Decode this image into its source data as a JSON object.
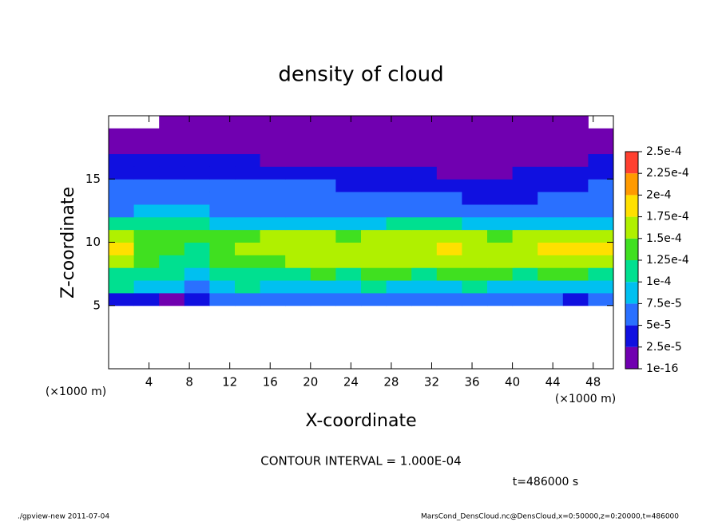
{
  "chart_data": {
    "type": "heatmap",
    "title": "density of cloud",
    "x_label": "X-coordinate",
    "y_label": "Z-coordinate",
    "x_unit": "(×1000 m)",
    "y_unit": "(×1000 m)",
    "xlim": [
      0,
      50
    ],
    "ylim": [
      0,
      20
    ],
    "xticks": [
      4,
      8,
      12,
      16,
      20,
      24,
      28,
      32,
      36,
      40,
      44,
      48
    ],
    "yticks": [
      5,
      10,
      15
    ],
    "x": [
      1.25,
      3.75,
      6.25,
      8.75,
      11.25,
      13.75,
      16.25,
      18.75,
      21.25,
      23.75,
      26.25,
      28.75,
      31.25,
      33.75,
      36.25,
      38.75,
      41.25,
      43.75,
      46.25,
      48.75
    ],
    "y": [
      5.5,
      6.5,
      7.5,
      8.5,
      9.5,
      10.5,
      11.5,
      12.5,
      13.5,
      14.5,
      15.5,
      16.5,
      17.5,
      18.5,
      19.5
    ],
    "z": [
      [
        3e-05,
        3e-05,
        2e-05,
        4e-05,
        5e-05,
        5e-05,
        6e-05,
        5e-05,
        5e-05,
        5e-05,
        5e-05,
        6e-05,
        5e-05,
        5e-05,
        5e-05,
        5e-05,
        5e-05,
        5e-05,
        4e-05,
        5e-05
      ],
      [
        0.0001,
        9e-05,
        8e-05,
        6e-05,
        9e-05,
        0.0001,
        9e-05,
        9e-05,
        9e-05,
        9e-05,
        0.0001,
        9e-05,
        9e-05,
        9e-05,
        0.0001,
        9e-05,
        9e-05,
        9e-05,
        9e-05,
        9e-05
      ],
      [
        0.00012,
        0.00011,
        0.0001,
        9e-05,
        0.00011,
        0.00012,
        0.00012,
        0.00012,
        0.00013,
        0.00012,
        0.00013,
        0.00013,
        0.00012,
        0.00013,
        0.00013,
        0.00013,
        0.00012,
        0.00013,
        0.00013,
        0.00012
      ],
      [
        0.00015,
        0.00013,
        0.00012,
        0.00011,
        0.00013,
        0.00014,
        0.00014,
        0.00015,
        0.00015,
        0.00015,
        0.00015,
        0.00015,
        0.00015,
        0.00016,
        0.00015,
        0.00015,
        0.00015,
        0.00016,
        0.00016,
        0.00016
      ],
      [
        0.00018,
        0.00014,
        0.00013,
        0.00012,
        0.00014,
        0.00015,
        0.00016,
        0.00016,
        0.00017,
        0.00016,
        0.00016,
        0.00016,
        0.00017,
        0.00018,
        0.00017,
        0.00016,
        0.00017,
        0.00018,
        0.00019,
        0.00019
      ],
      [
        0.00015,
        0.00014,
        0.00013,
        0.00013,
        0.00014,
        0.00014,
        0.00015,
        0.00015,
        0.00015,
        0.00014,
        0.00015,
        0.00015,
        0.00016,
        0.00016,
        0.00015,
        0.00014,
        0.00015,
        0.00016,
        0.00017,
        0.00016
      ],
      [
        0.0001,
        0.00011,
        0.00011,
        0.00011,
        9e-05,
        8e-05,
        9e-05,
        9e-05,
        9e-05,
        9e-05,
        9e-05,
        0.0001,
        0.0001,
        0.0001,
        9e-05,
        9e-05,
        9e-05,
        9e-05,
        8e-05,
        8e-05
      ],
      [
        7e-05,
        8e-05,
        8e-05,
        8e-05,
        7e-05,
        6e-05,
        7e-05,
        7e-05,
        7e-05,
        7e-05,
        7e-05,
        7e-05,
        7e-05,
        7e-05,
        6e-05,
        6e-05,
        7e-05,
        6e-05,
        6e-05,
        7e-05
      ],
      [
        6e-05,
        6e-05,
        6e-05,
        6e-05,
        6e-05,
        6e-05,
        6e-05,
        6e-05,
        6e-05,
        6e-05,
        5e-05,
        5e-05,
        5e-05,
        5e-05,
        4e-05,
        4e-05,
        4e-05,
        5e-05,
        5e-05,
        6e-05
      ],
      [
        5e-05,
        5e-05,
        5e-05,
        5e-05,
        5e-05,
        5e-05,
        5e-05,
        5e-05,
        5e-05,
        4e-05,
        4e-05,
        4e-05,
        4e-05,
        3e-05,
        3e-05,
        3e-05,
        3e-05,
        4e-05,
        4e-05,
        5e-05
      ],
      [
        4e-05,
        4e-05,
        4e-05,
        4e-05,
        4e-05,
        4e-05,
        4e-05,
        3e-05,
        3e-05,
        3e-05,
        3e-05,
        3e-05,
        3e-05,
        2e-05,
        2e-05,
        2e-05,
        3e-05,
        3e-05,
        3e-05,
        4e-05
      ],
      [
        3e-05,
        3e-05,
        3e-05,
        3e-05,
        3e-05,
        3e-05,
        2e-05,
        2e-05,
        2e-05,
        2e-05,
        2e-05,
        2e-05,
        2e-05,
        2e-05,
        1e-05,
        2e-05,
        2e-05,
        2e-05,
        2e-05,
        3e-05
      ],
      [
        1e-05,
        1e-05,
        2e-05,
        1e-05,
        1e-05,
        1e-05,
        1e-05,
        1e-05,
        2e-05,
        1e-05,
        1e-05,
        1e-05,
        1e-05,
        1e-05,
        1e-05,
        1e-05,
        1e-05,
        1e-05,
        1e-05,
        1e-05
      ],
      [
        1e-05,
        1e-05,
        1e-05,
        1e-05,
        1e-05,
        1e-05,
        1e-05,
        1e-05,
        1e-05,
        1e-05,
        1e-05,
        1e-05,
        1e-05,
        1e-05,
        1e-05,
        1e-05,
        1e-05,
        1e-05,
        1e-05,
        1e-05
      ],
      [
        null,
        null,
        1e-05,
        1e-05,
        1e-05,
        1e-05,
        1e-05,
        1e-05,
        1e-05,
        1e-05,
        1e-05,
        1e-05,
        1e-05,
        1e-05,
        1e-05,
        1e-05,
        1e-05,
        1e-05,
        1e-05,
        null
      ]
    ],
    "levels": [
      {
        "value": 1e-16,
        "label": "1e-16"
      },
      {
        "value": 2.5e-05,
        "label": "2.5e-5"
      },
      {
        "value": 5e-05,
        "label": "5e-5"
      },
      {
        "value": 7.5e-05,
        "label": "7.5e-5"
      },
      {
        "value": 0.0001,
        "label": "1e-4"
      },
      {
        "value": 0.000125,
        "label": "1.25e-4"
      },
      {
        "value": 0.00015,
        "label": "1.5e-4"
      },
      {
        "value": 0.000175,
        "label": "1.75e-4"
      },
      {
        "value": 0.0002,
        "label": "2e-4"
      },
      {
        "value": 0.000225,
        "label": "2.25e-4"
      },
      {
        "value": 0.00025,
        "label": "2.5e-4"
      }
    ],
    "colors": [
      "#7000b0",
      "#1010e0",
      "#2a70ff",
      "#00c0f0",
      "#00e090",
      "#40e020",
      "#b0f000",
      "#ffe000",
      "#ff9a00",
      "#ff4030"
    ],
    "contour_interval": "CONTOUR INTERVAL = 1.000E-04",
    "time_label": "t=486000 s",
    "footer_left": "./gpview-new  2011-07-04",
    "footer_right": "MarsCond_DensCloud.nc@DensCloud,x=0:50000,z=0:20000,t=486000"
  }
}
